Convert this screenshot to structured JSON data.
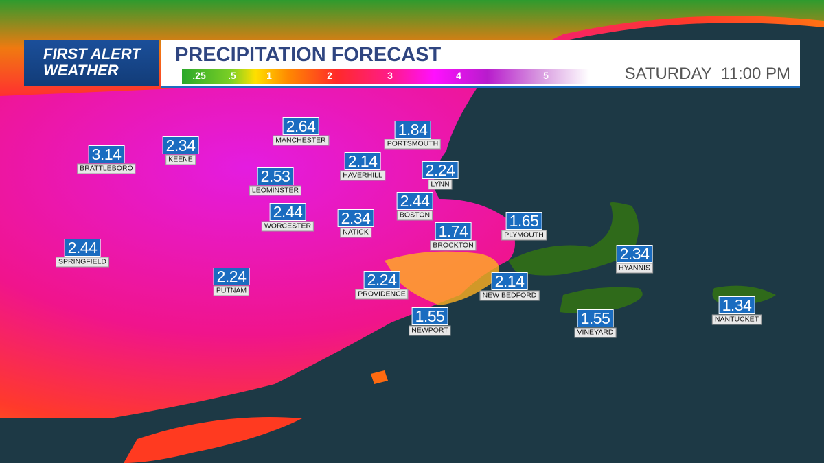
{
  "logo": {
    "line1": "FIRST ALERT",
    "line2": "WEATHER"
  },
  "title": "PRECIPITATION FORECAST",
  "day": "SATURDAY",
  "time": "11:00 PM",
  "legend": {
    "labels": [
      ".25",
      ".5",
      "1",
      "2",
      "3",
      "4",
      "5"
    ]
  },
  "cities": [
    {
      "name": "MANCHESTER",
      "value": "2.64"
    },
    {
      "name": "PORTSMOUTH",
      "value": "1.84"
    },
    {
      "name": "BRATTLEBORO",
      "value": "3.14"
    },
    {
      "name": "KEENE",
      "value": "2.34"
    },
    {
      "name": "HAVERHILL",
      "value": "2.14"
    },
    {
      "name": "LYNN",
      "value": "2.24"
    },
    {
      "name": "LEOMINSTER",
      "value": "2.53"
    },
    {
      "name": "BOSTON",
      "value": "2.44"
    },
    {
      "name": "WORCESTER",
      "value": "2.44"
    },
    {
      "name": "NATICK",
      "value": "2.34"
    },
    {
      "name": "BROCKTON",
      "value": "1.74"
    },
    {
      "name": "PLYMOUTH",
      "value": "1.65"
    },
    {
      "name": "SPRINGFIELD",
      "value": "2.44"
    },
    {
      "name": "HYANNIS",
      "value": "2.34"
    },
    {
      "name": "PUTNAM",
      "value": "2.24"
    },
    {
      "name": "PROVIDENCE",
      "value": "2.24"
    },
    {
      "name": "NEW BEDFORD",
      "value": "2.14"
    },
    {
      "name": "NEWPORT",
      "value": "1.55"
    },
    {
      "name": "VINEYARD",
      "value": "1.55"
    },
    {
      "name": "NANTUCKET",
      "value": "1.34"
    }
  ]
}
